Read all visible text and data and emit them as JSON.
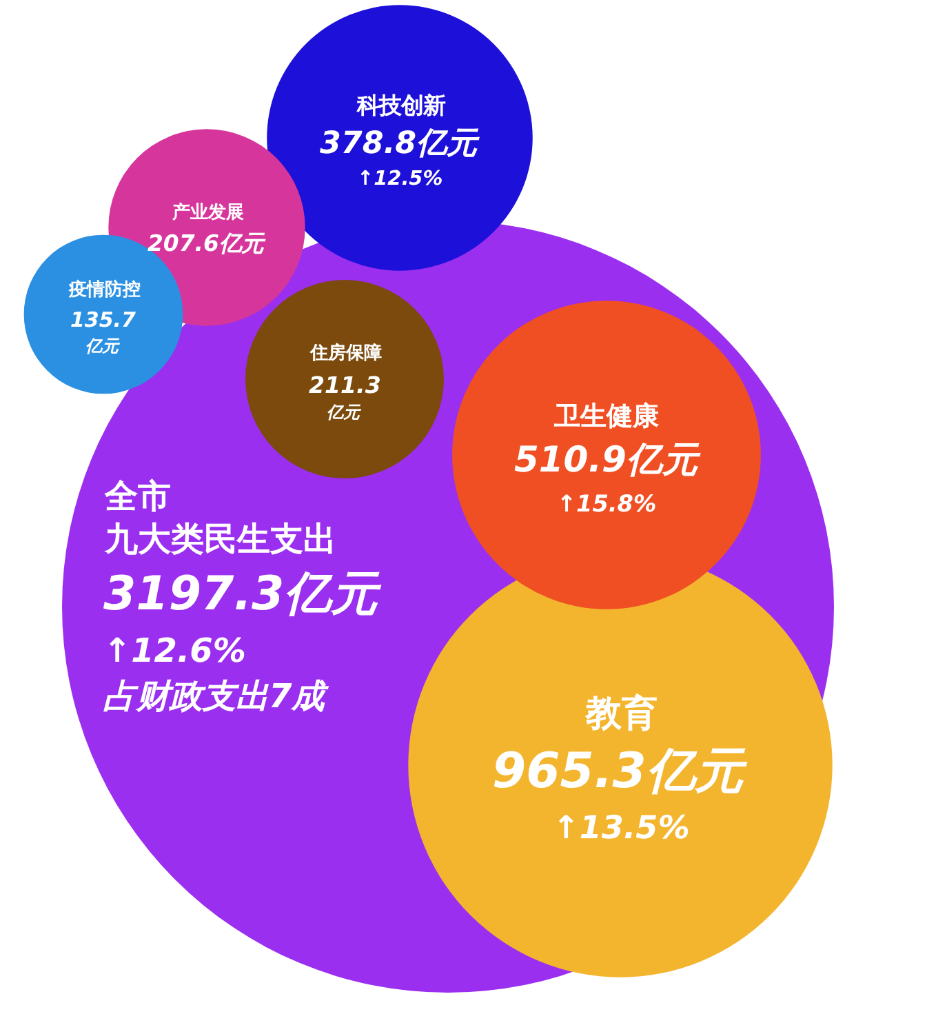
{
  "chart_data": {
    "type": "other",
    "categories": [
      "全市九大类民生支出",
      "教育",
      "卫生健康",
      "住房保障",
      "科技创新",
      "产业发展",
      "疫情防控"
    ],
    "values": [
      3197.3,
      965.3,
      510.9,
      211.3,
      378.8,
      207.6,
      135.7
    ],
    "value_labels": [
      "3197.3亿元\n↑12.6%\n占财政支出7成",
      "965.3亿元\n↑13.5%",
      "510.9亿元\n↑15.8%",
      "211.3\n亿元",
      "378.8亿元\n↑12.5%",
      "207.6亿元",
      "135.7\n亿元"
    ],
    "colors": [
      "#9b2ff0",
      "#f3b52e",
      "#f04f24",
      "#7b4a0c",
      "#1d10d8",
      "#d6369c",
      "#2b90e2"
    ]
  }
}
